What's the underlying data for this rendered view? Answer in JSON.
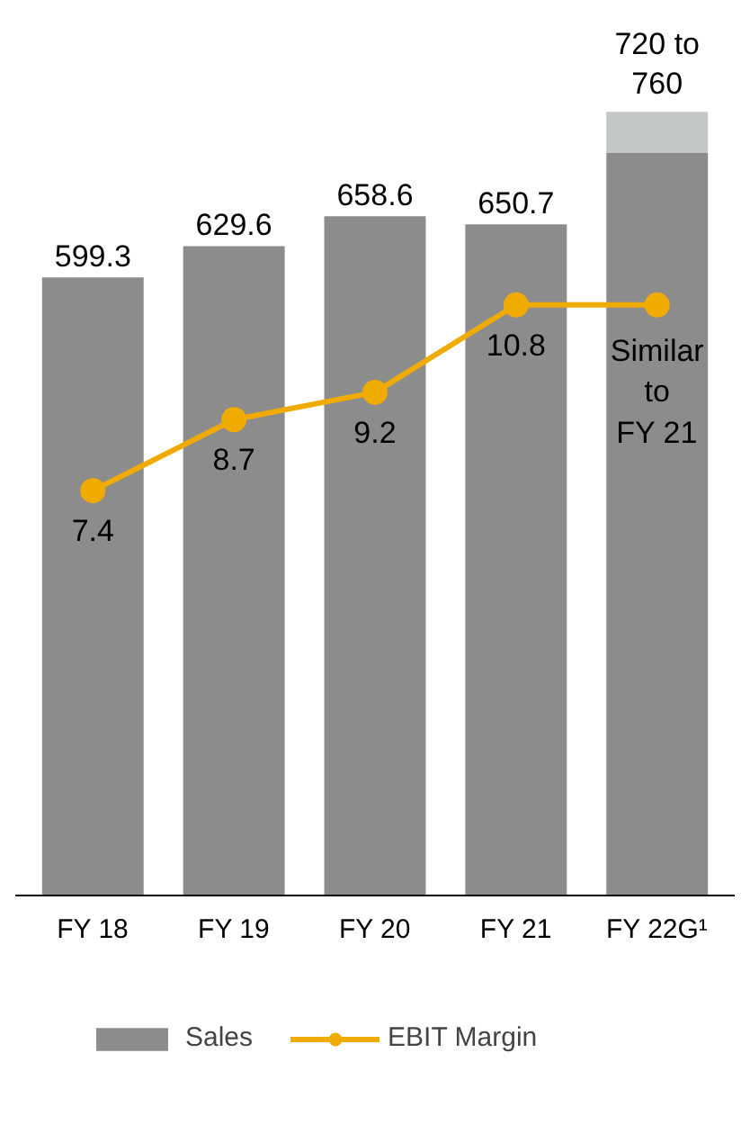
{
  "chart_data": {
    "type": "bar",
    "categories": [
      "FY 18",
      "FY 19",
      "FY 20",
      "FY 21",
      "FY 22G¹"
    ],
    "stacked": true,
    "tick_labels": "x",
    "grid": false,
    "legend": "bottom",
    "series": [
      {
        "name": "Sales",
        "color": "#8c8c8c",
        "values": [
          599.3,
          629.6,
          658.6,
          650.7,
          720
        ],
        "value_labels": [
          "599.3",
          "629.6",
          "658.6",
          "650.7",
          "720 to\n760"
        ]
      },
      {
        "color": "#c3c7c7",
        "values": [
          null,
          null,
          null,
          null,
          40
        ]
      },
      {
        "name": "EBIT Margin",
        "type": "line",
        "axis": "y2",
        "color": "#f0ab00",
        "marker": "circle",
        "line_style": "solid",
        "values": [
          7.4,
          8.7,
          9.2,
          10.8,
          10.8
        ],
        "value_labels": [
          "7.4",
          "8.7",
          "9.2",
          "10.8",
          "Similar\nto\nFY 21"
        ]
      }
    ]
  }
}
